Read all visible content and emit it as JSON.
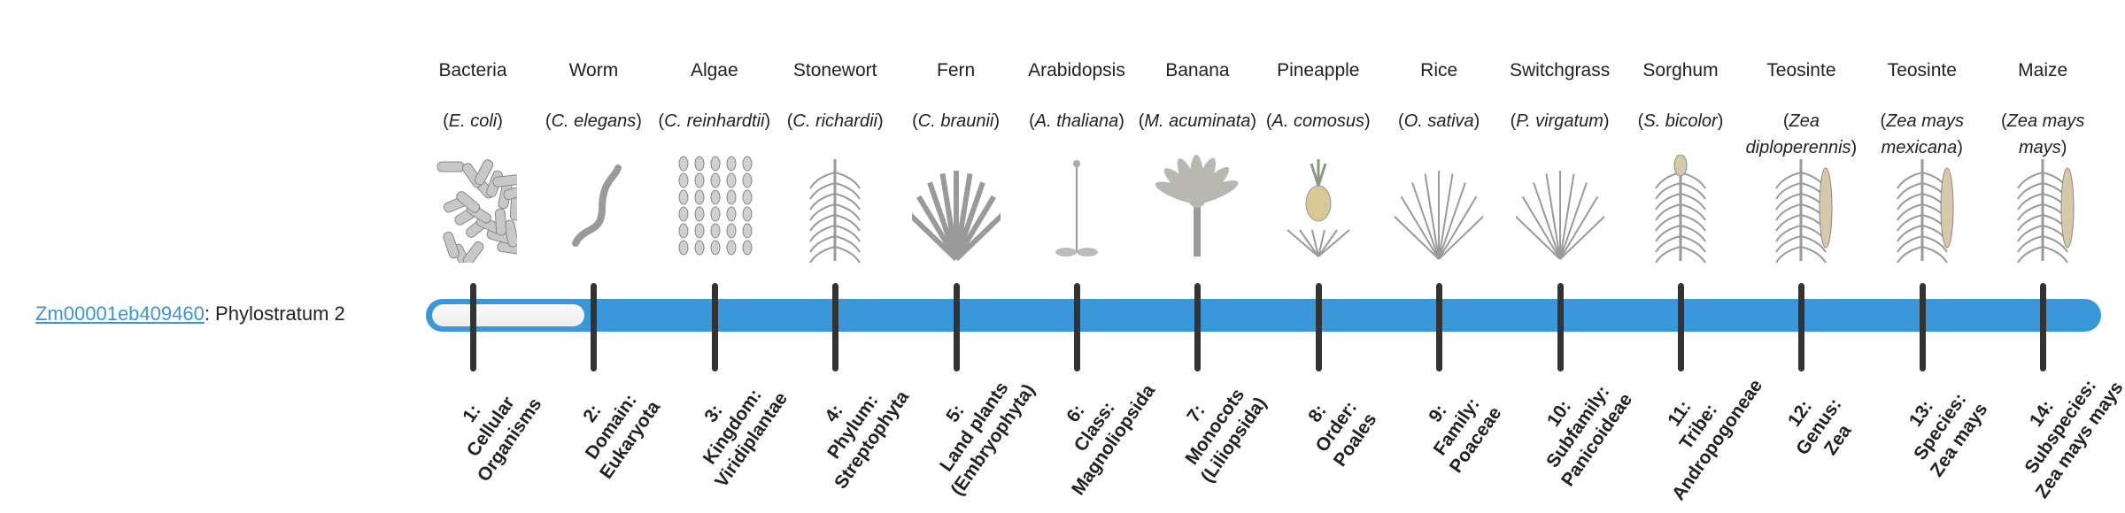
{
  "gene": {
    "id": "Zm00001eb409460",
    "suffix": ": Phylostratum 2"
  },
  "current_phylostratum": 2,
  "colors": {
    "bar": "#3a98da",
    "tick": "#333333",
    "link": "#3a95d8"
  },
  "organisms": [
    {
      "common": "Bacteria",
      "species": "E. coli",
      "icon": "bacteria"
    },
    {
      "common": "Worm",
      "species": "C. elegans",
      "icon": "worm"
    },
    {
      "common": "Algae",
      "species": "C. reinhardtii",
      "icon": "algae"
    },
    {
      "common": "Stonewort",
      "species": "C. richardii",
      "icon": "stonewort"
    },
    {
      "common": "Fern",
      "species": "C. braunii",
      "icon": "fern"
    },
    {
      "common": "Arabidopsis",
      "species": "A. thaliana",
      "icon": "arabidopsis"
    },
    {
      "common": "Banana",
      "species": "M. acuminata",
      "icon": "banana"
    },
    {
      "common": "Pineapple",
      "species": "A. comosus",
      "icon": "pineapple"
    },
    {
      "common": "Rice",
      "species": "O. sativa",
      "icon": "rice"
    },
    {
      "common": "Switchgrass",
      "species": "P. virgatum",
      "icon": "switchgrass"
    },
    {
      "common": "Sorghum",
      "species": "S. bicolor",
      "icon": "sorghum"
    },
    {
      "common": "Teosinte",
      "species": "Zea diploperennis",
      "icon": "teosinte"
    },
    {
      "common": "Teosinte",
      "species": "Zea mays mexicana",
      "icon": "teosinte"
    },
    {
      "common": "Maize",
      "species": "Zea mays mays",
      "icon": "maize"
    }
  ],
  "strata": [
    [
      "1:",
      "Cellular",
      "Organisms"
    ],
    [
      "2:",
      "Domain:",
      "Eukaryota"
    ],
    [
      "3:",
      "Kingdom:",
      "Viridiplantae"
    ],
    [
      "4:",
      "Phylum:",
      "Streptophyta"
    ],
    [
      "5:",
      "Land plants",
      "(Embryophyta)"
    ],
    [
      "6:",
      "Class:",
      "Magnoliopsida"
    ],
    [
      "7:",
      "Monocots",
      "(Liliopsida)"
    ],
    [
      "8:",
      "Order:",
      "Poales"
    ],
    [
      "9:",
      "Family:",
      "Poaceae"
    ],
    [
      "10:",
      "Subfamily:",
      "Panicoideae"
    ],
    [
      "11:",
      "Tribe:",
      "Andropogoneae"
    ],
    [
      "12:",
      "Genus:",
      "Zea"
    ],
    [
      "13:",
      "Species:",
      "Zea mays"
    ],
    [
      "14:",
      "Subspecies:",
      "Zea mays mays"
    ]
  ]
}
